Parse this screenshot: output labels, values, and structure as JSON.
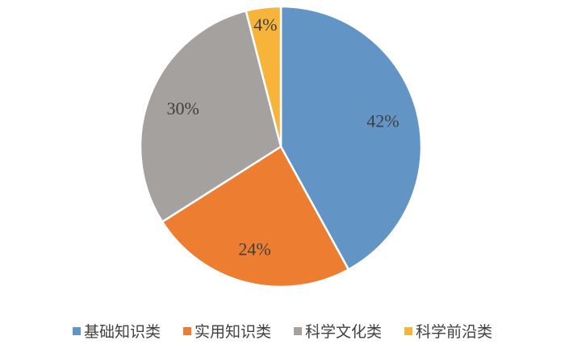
{
  "chart_data": {
    "type": "pie",
    "categories": [
      "基础知识类",
      "实用知识类",
      "科学文化类",
      "科学前沿类"
    ],
    "values": [
      42,
      24,
      30,
      4
    ],
    "value_labels": [
      "42%",
      "24%",
      "30%",
      "4%"
    ],
    "colors": [
      "#6394c6",
      "#ed7d31",
      "#a5a19e",
      "#f6b43a"
    ],
    "legend": "bottom"
  }
}
